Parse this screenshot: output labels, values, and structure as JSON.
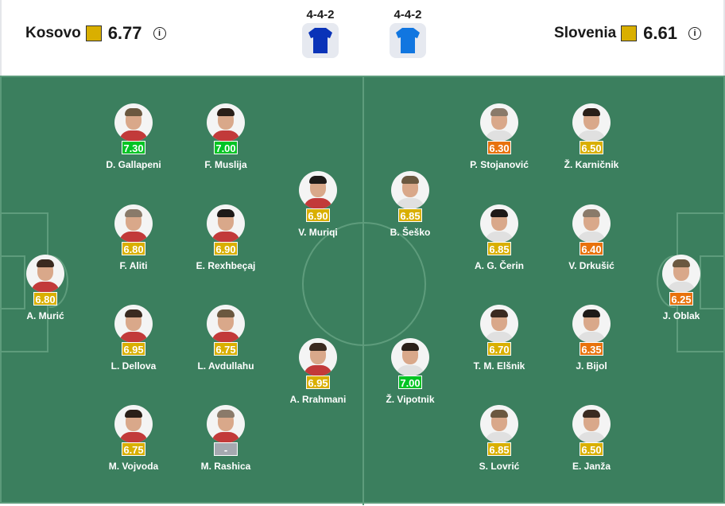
{
  "home": {
    "name": "Kosovo",
    "rating": "6.77",
    "formation": "4-4-2",
    "shirt_color": "#0a33b8"
  },
  "away": {
    "name": "Slovenia",
    "rating": "6.61",
    "formation": "4-4-2",
    "shirt_color": "#1176e0"
  },
  "rating_colors": {
    "green": "#00c424",
    "yellow": "#d9af00",
    "orange": "#e8720c",
    "none": "#a5a9b0"
  },
  "players": [
    {
      "name": "A. Murić",
      "rating": "6.80",
      "level": "yellow"
    },
    {
      "name": "D. Gallapeni",
      "rating": "7.30",
      "level": "green"
    },
    {
      "name": "F. Muslija",
      "rating": "7.00",
      "level": "green"
    },
    {
      "name": "F. Aliti",
      "rating": "6.80",
      "level": "yellow"
    },
    {
      "name": "E. Rexhbeçaj",
      "rating": "6.90",
      "level": "yellow"
    },
    {
      "name": "L. Dellova",
      "rating": "6.95",
      "level": "yellow"
    },
    {
      "name": "L. Avdullahu",
      "rating": "6.75",
      "level": "yellow"
    },
    {
      "name": "M. Vojvoda",
      "rating": "6.75",
      "level": "yellow"
    },
    {
      "name": "M. Rashica",
      "rating": "-",
      "level": "none"
    },
    {
      "name": "V. Muriqi",
      "rating": "6.90",
      "level": "yellow"
    },
    {
      "name": "A. Rrahmani",
      "rating": "6.95",
      "level": "yellow"
    },
    {
      "name": "B. Šeško",
      "rating": "6.85",
      "level": "yellow"
    },
    {
      "name": "Ž. Vipotnik",
      "rating": "7.00",
      "level": "green"
    },
    {
      "name": "P. Stojanović",
      "rating": "6.30",
      "level": "orange"
    },
    {
      "name": "A. G. Čerin",
      "rating": "6.85",
      "level": "yellow"
    },
    {
      "name": "T. M. Elšnik",
      "rating": "6.70",
      "level": "yellow"
    },
    {
      "name": "S. Lovrić",
      "rating": "6.85",
      "level": "yellow"
    },
    {
      "name": "Ž. Karničnik",
      "rating": "6.50",
      "level": "yellow"
    },
    {
      "name": "V. Drkušić",
      "rating": "6.40",
      "level": "orange"
    },
    {
      "name": "J. Bijol",
      "rating": "6.35",
      "level": "orange"
    },
    {
      "name": "E. Janža",
      "rating": "6.50",
      "level": "yellow"
    },
    {
      "name": "J. Oblak",
      "rating": "6.25",
      "level": "orange"
    }
  ]
}
